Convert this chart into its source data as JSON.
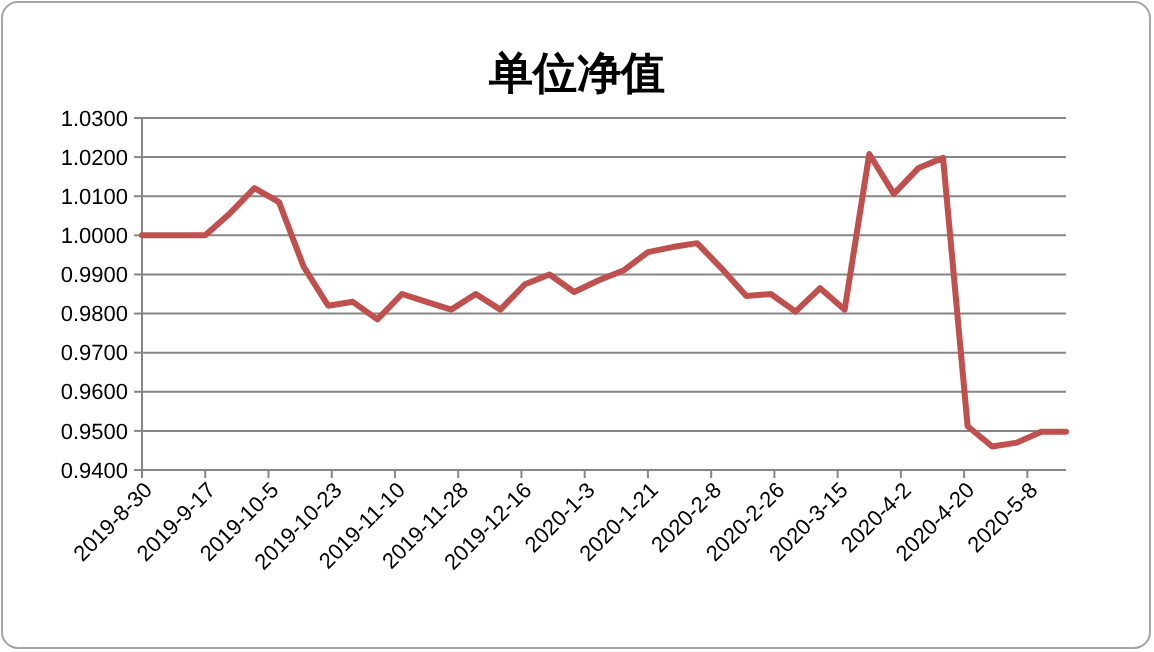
{
  "chart_data": {
    "type": "line",
    "title": "单位净值",
    "x": [
      "2019-08-30",
      "2019-09-17",
      "2019-09-24",
      "2019-10-01",
      "2019-10-08",
      "2019-10-15",
      "2019-10-22",
      "2019-10-29",
      "2019-11-05",
      "2019-11-12",
      "2019-11-19",
      "2019-11-26",
      "2019-12-03",
      "2019-12-10",
      "2019-12-17",
      "2019-12-24",
      "2019-12-31",
      "2020-01-07",
      "2020-01-14",
      "2020-01-21",
      "2020-01-28",
      "2020-02-04",
      "2020-02-11",
      "2020-02-18",
      "2020-02-25",
      "2020-03-03",
      "2020-03-10",
      "2020-03-17",
      "2020-03-24",
      "2020-03-31",
      "2020-04-07",
      "2020-04-14",
      "2020-04-21",
      "2020-04-28",
      "2020-05-05",
      "2020-05-12",
      "2020-05-19"
    ],
    "series": [
      {
        "color": "#c0504d",
        "values": [
          1.0,
          1.0,
          1.0056,
          1.0121,
          1.0085,
          0.992,
          0.982,
          0.983,
          0.9785,
          0.985,
          0.983,
          0.981,
          0.985,
          0.981,
          0.9875,
          0.99,
          0.9855,
          0.9885,
          0.991,
          0.9957,
          0.997,
          0.998,
          0.9915,
          0.9845,
          0.985,
          0.9805,
          0.9865,
          0.981,
          1.0208,
          1.0106,
          1.0172,
          1.0198,
          0.9512,
          0.946,
          0.947,
          0.9498,
          0.9498
        ]
      }
    ],
    "xlim": [
      "2019-08-30",
      "2020-05-19"
    ],
    "xticks": [
      {
        "value": "2019-08-30",
        "label": "2019-8-30"
      },
      {
        "value": "2019-09-17",
        "label": "2019-9-17"
      },
      {
        "value": "2019-10-05",
        "label": "2019-10-5"
      },
      {
        "value": "2019-10-23",
        "label": "2019-10-23"
      },
      {
        "value": "2019-11-10",
        "label": "2019-11-10"
      },
      {
        "value": "2019-11-28",
        "label": "2019-11-28"
      },
      {
        "value": "2019-12-16",
        "label": "2019-12-16"
      },
      {
        "value": "2020-01-03",
        "label": "2020-1-3"
      },
      {
        "value": "2020-01-21",
        "label": "2020-1-21"
      },
      {
        "value": "2020-02-08",
        "label": "2020-2-8"
      },
      {
        "value": "2020-02-26",
        "label": "2020-2-26"
      },
      {
        "value": "2020-03-15",
        "label": "2020-3-15"
      },
      {
        "value": "2020-04-02",
        "label": "2020-4-2"
      },
      {
        "value": "2020-04-20",
        "label": "2020-4-20"
      },
      {
        "value": "2020-05-08",
        "label": "2020-5-8"
      }
    ],
    "ylim": [
      0.94,
      1.03
    ],
    "yticks": [
      {
        "value": 0.94,
        "label": "0.9400"
      },
      {
        "value": 0.95,
        "label": "0.9500"
      },
      {
        "value": 0.96,
        "label": "0.9600"
      },
      {
        "value": 0.97,
        "label": "0.9700"
      },
      {
        "value": 0.98,
        "label": "0.9800"
      },
      {
        "value": 0.99,
        "label": "0.9900"
      },
      {
        "value": 1.0,
        "label": "1.0000"
      },
      {
        "value": 1.01,
        "label": "1.0100"
      },
      {
        "value": 1.02,
        "label": "1.0200"
      },
      {
        "value": 1.03,
        "label": "1.0300"
      }
    ],
    "grid": "y",
    "marker": "none",
    "line_style": "solid"
  }
}
